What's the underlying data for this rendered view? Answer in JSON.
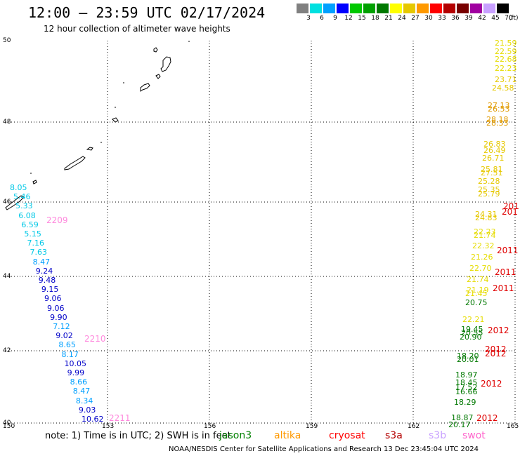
{
  "title": "12:00 — 23:59 UTC 02/17/2024",
  "subtitle": "12 hour collection of altimeter wave heights",
  "scale": {
    "unit": "(ft)",
    "bins": [
      {
        "label": "3",
        "color": "#808080"
      },
      {
        "label": "6",
        "color": "#00e0e0"
      },
      {
        "label": "9",
        "color": "#00a0ff"
      },
      {
        "label": "12",
        "color": "#0000ff"
      },
      {
        "label": "15",
        "color": "#00c800"
      },
      {
        "label": "18",
        "color": "#00a000"
      },
      {
        "label": "21",
        "color": "#007800"
      },
      {
        "label": "24",
        "color": "#ffff00"
      },
      {
        "label": "27",
        "color": "#e6c800"
      },
      {
        "label": "30",
        "color": "#ff9900"
      },
      {
        "label": "33",
        "color": "#ff0000"
      },
      {
        "label": "36",
        "color": "#b40000"
      },
      {
        "label": "39",
        "color": "#780000"
      },
      {
        "label": "42",
        "color": "#a000a0"
      },
      {
        "label": "45",
        "color": "#c8a0ff"
      },
      {
        "label": "70",
        "color": "#000000"
      }
    ]
  },
  "axes": {
    "lon_ticks": [
      "150",
      "153",
      "156",
      "159",
      "162",
      "165"
    ],
    "lat_ticks": [
      "50",
      "48",
      "46",
      "44",
      "42",
      "40"
    ]
  },
  "tracks": {
    "west": [
      {
        "v": "8.05",
        "c": "#00c8e6"
      },
      {
        "v": "5.46",
        "c": "#00c8e6"
      },
      {
        "v": "5.33",
        "c": "#00c8e6"
      },
      {
        "v": "6.08",
        "c": "#00c8e6"
      },
      {
        "v": "6.59",
        "c": "#00c8e6"
      },
      {
        "v": "5.15",
        "c": "#00c8e6"
      },
      {
        "v": "7.16",
        "c": "#00c8e6"
      },
      {
        "v": "7.63",
        "c": "#00c8e6"
      },
      {
        "v": "8.47",
        "c": "#00a0ff"
      },
      {
        "v": "9.24",
        "c": "#0000c8"
      },
      {
        "v": "9.48",
        "c": "#0000c8"
      },
      {
        "v": "9.15",
        "c": "#0000c8"
      },
      {
        "v": "9.06",
        "c": "#0000c8"
      },
      {
        "v": "9.06",
        "c": "#0000c8"
      },
      {
        "v": "9.90",
        "c": "#0000c8"
      },
      {
        "v": "7.12",
        "c": "#00a0ff"
      },
      {
        "v": "9.02",
        "c": "#0000c8"
      },
      {
        "v": "8.65",
        "c": "#00a0ff"
      },
      {
        "v": "8.17",
        "c": "#00a0ff"
      },
      {
        "v": "10.05",
        "c": "#0000c8"
      },
      {
        "v": "9.99",
        "c": "#0000c8"
      },
      {
        "v": "8.66",
        "c": "#00a0ff"
      },
      {
        "v": "8.47",
        "c": "#00a0ff"
      },
      {
        "v": "8.34",
        "c": "#00a0ff"
      },
      {
        "v": "9.03",
        "c": "#0000c8"
      },
      {
        "v": "10.62",
        "c": "#0000c8"
      }
    ],
    "west_passes": [
      "2209",
      "2210",
      "2211"
    ],
    "east": [
      {
        "v": "21.59",
        "c": "#e6dc00"
      },
      {
        "v": "22.59",
        "c": "#e6dc00"
      },
      {
        "v": "22.68",
        "c": "#e6dc00"
      },
      {
        "v": "22.23",
        "c": "#e6dc00"
      },
      {
        "v": "23.71",
        "c": "#e6c800"
      },
      {
        "v": "24.58",
        "c": "#e6c800"
      },
      {
        "v": "27.13",
        "c": "#e09a00"
      },
      {
        "v": "26.53",
        "c": "#e09a00"
      },
      {
        "v": "28.18",
        "c": "#e09a00"
      },
      {
        "v": "28.33",
        "c": "#e09a00"
      },
      {
        "v": "26.83",
        "c": "#e6c800"
      },
      {
        "v": "26.49",
        "c": "#e6c800"
      },
      {
        "v": "26.71",
        "c": "#e6c800"
      },
      {
        "v": "25.81",
        "c": "#e6c800"
      },
      {
        "v": "27.51",
        "c": "#e6c800"
      },
      {
        "v": "25.28",
        "c": "#e6c800"
      },
      {
        "v": "25.35",
        "c": "#e6c800"
      },
      {
        "v": "25.79",
        "c": "#e6c800"
      },
      {
        "v": "24.31",
        "c": "#e6c800"
      },
      {
        "v": "24.83",
        "c": "#e6c800"
      },
      {
        "v": "22.23",
        "c": "#e6dc00"
      },
      {
        "v": "21.74",
        "c": "#e6dc00"
      },
      {
        "v": "22.32",
        "c": "#e6dc00"
      },
      {
        "v": "21.26",
        "c": "#e6dc00"
      },
      {
        "v": "22.70",
        "c": "#e6dc00"
      },
      {
        "v": "21.74",
        "c": "#e6dc00"
      },
      {
        "v": "21.19",
        "c": "#e6dc00"
      },
      {
        "v": "21.45",
        "c": "#e6dc00"
      },
      {
        "v": "20.75",
        "c": "#007800"
      },
      {
        "v": "22.21",
        "c": "#e6dc00"
      },
      {
        "v": "19.45",
        "c": "#007800"
      },
      {
        "v": "20.55",
        "c": "#007800"
      },
      {
        "v": "20.90",
        "c": "#007800"
      },
      {
        "v": "18.20",
        "c": "#007800"
      },
      {
        "v": "20.01",
        "c": "#007800"
      },
      {
        "v": "18.97",
        "c": "#007800"
      },
      {
        "v": "18.45",
        "c": "#007800"
      },
      {
        "v": "17.52",
        "c": "#007800"
      },
      {
        "v": "16.66",
        "c": "#007800"
      },
      {
        "v": "18.29",
        "c": "#007800"
      },
      {
        "v": "18.87",
        "c": "#007800"
      },
      {
        "v": "20.17",
        "c": "#007800"
      }
    ],
    "east_passes": [
      "201",
      "201",
      "2011",
      "2011",
      "2011",
      "2012",
      "2012",
      "2012",
      "2012",
      "2012"
    ]
  },
  "note": "note:  1) Time is in UTC;  2) SWH is in feet",
  "legend": [
    {
      "label": "jason3",
      "color": "#008000"
    },
    {
      "label": "altika",
      "color": "#ff9900"
    },
    {
      "label": "cryosat",
      "color": "#ff0000"
    },
    {
      "label": "s3a",
      "color": "#b40000"
    },
    {
      "label": "s3b",
      "color": "#c8a0ff"
    },
    {
      "label": "swot",
      "color": "#ff66cc"
    }
  ],
  "credit": "NOAA/NESDIS Center for Satellite Applications and Research    13 Dec 23:45:04 UTC 2024"
}
